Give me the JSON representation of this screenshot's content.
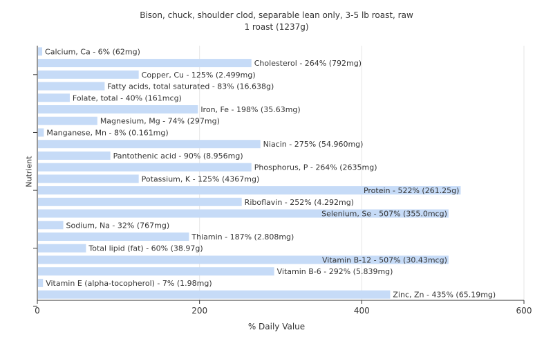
{
  "chart_data": {
    "type": "bar",
    "orientation": "horizontal",
    "title": "Bison, chuck, shoulder clod, separable lean only, 3-5 lb roast, raw",
    "subtitle": "1 roast (1237g)",
    "xlabel": "% Daily Value",
    "ylabel": "Nutrient",
    "xlim": [
      0,
      600
    ],
    "xticks": [
      0,
      200,
      400,
      600
    ],
    "grid": true,
    "bar_color": "#c6dbf7",
    "categories": [
      "Calcium, Ca - 6% (62mg)",
      "Cholesterol - 264% (792mg)",
      "Copper, Cu - 125% (2.499mg)",
      "Fatty acids, total saturated - 83% (16.638g)",
      "Folate, total - 40% (161mcg)",
      "Iron, Fe - 198% (35.63mg)",
      "Magnesium, Mg - 74% (297mg)",
      "Manganese, Mn - 8% (0.161mg)",
      "Niacin - 275% (54.960mg)",
      "Pantothenic acid - 90% (8.956mg)",
      "Phosphorus, P - 264% (2635mg)",
      "Potassium, K - 125% (4367mg)",
      "Protein - 522% (261.25g)",
      "Riboflavin - 252% (4.292mg)",
      "Selenium, Se - 507% (355.0mcg)",
      "Sodium, Na - 32% (767mg)",
      "Thiamin - 187% (2.808mg)",
      "Total lipid (fat) - 60% (38.97g)",
      "Vitamin B-12 - 507% (30.43mcg)",
      "Vitamin B-6 - 292% (5.839mg)",
      "Vitamin E (alpha-tocopherol) - 7% (1.98mg)",
      "Zinc, Zn - 435% (65.19mg)"
    ],
    "values": [
      6,
      264,
      125,
      83,
      40,
      198,
      74,
      8,
      275,
      90,
      264,
      125,
      522,
      252,
      507,
      32,
      187,
      60,
      507,
      292,
      7,
      435
    ]
  }
}
